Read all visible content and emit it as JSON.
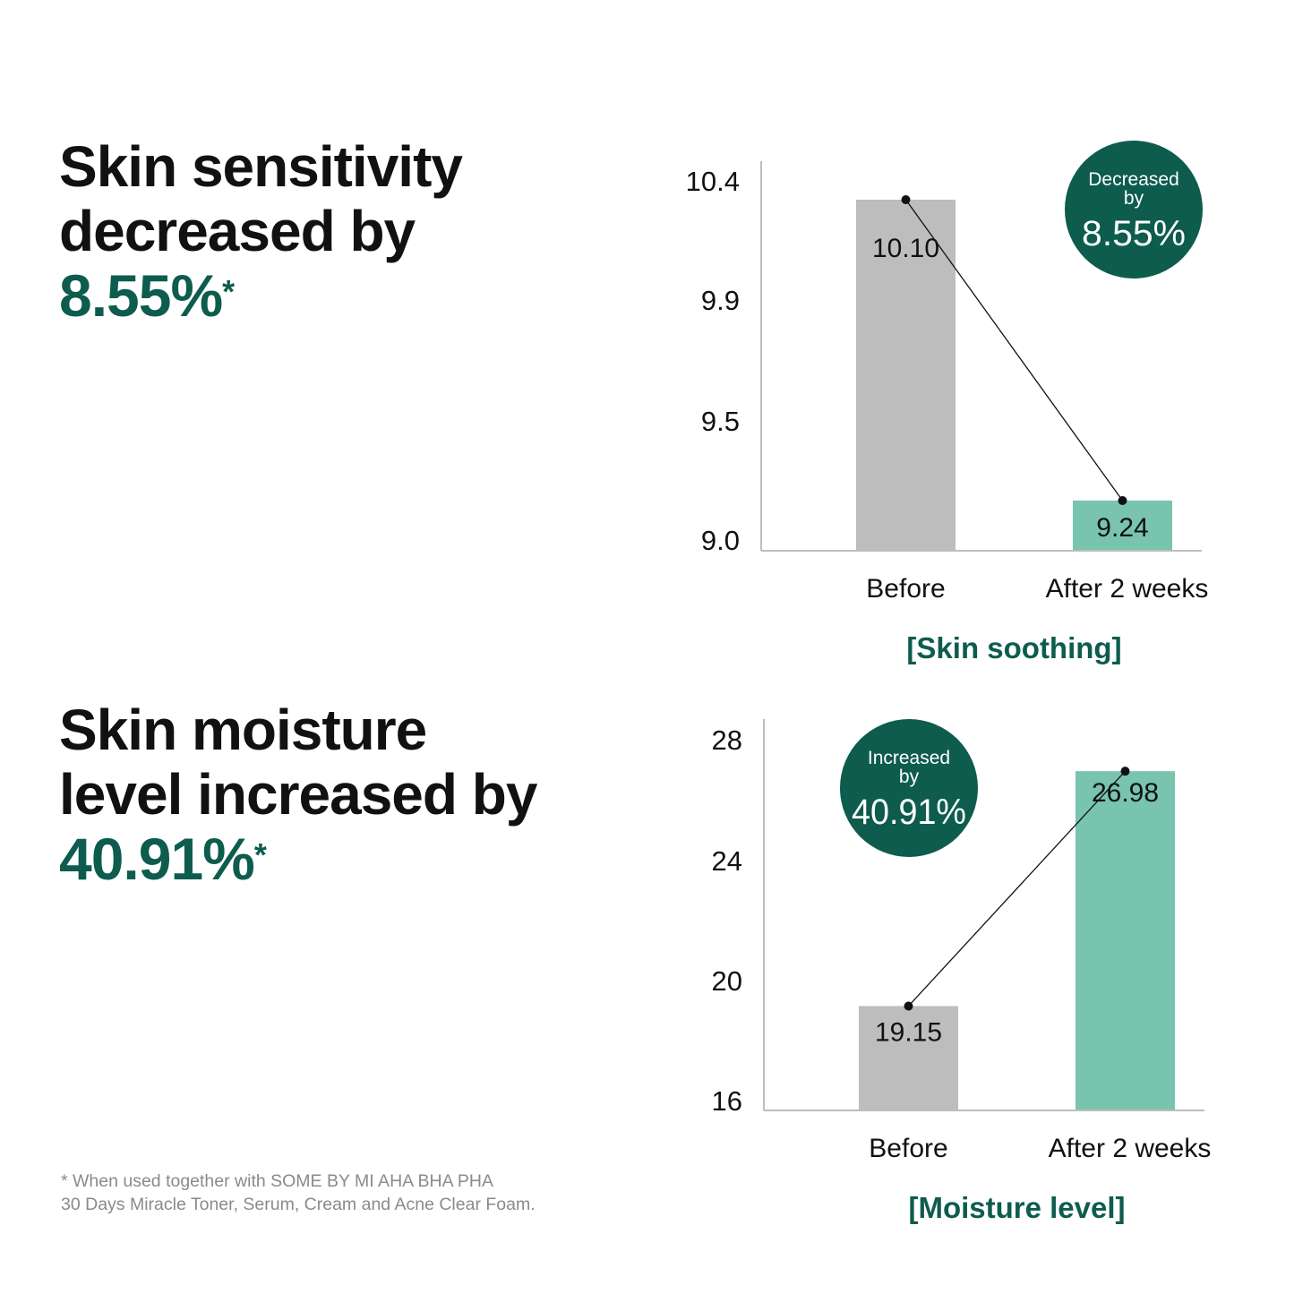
{
  "headlines": [
    {
      "line1": "Skin sensitivity",
      "line2": "decreased by",
      "pct": "8.55%",
      "mark": "*"
    },
    {
      "line1": "Skin moisture",
      "line2": "level increased by",
      "pct": "40.91%",
      "mark": "*"
    }
  ],
  "footnote": {
    "line1": "* When used together with SOME BY MI AHA BHA PHA",
    "line2": "30 Days Miracle Toner, Serum, Cream and Acne Clear Foam."
  },
  "colors": {
    "before": "#bdbdbd",
    "after": "#78c4af",
    "accent": "#0d5c4e",
    "text": "#111111"
  },
  "chart_data": [
    {
      "type": "bar",
      "title": "[Skin soothing]",
      "categories": [
        "Before",
        "After 2 weeks"
      ],
      "values": [
        10.1,
        9.24
      ],
      "value_labels": [
        "10.10",
        "9.24"
      ],
      "yticks": [
        "9.0",
        "9.5",
        "9.9",
        "10.4"
      ],
      "badge": {
        "line1": "Decreased",
        "line2": "by",
        "value": "8.55%"
      },
      "grid": false,
      "legend": "none"
    },
    {
      "type": "bar",
      "title": "[Moisture level]",
      "categories": [
        "Before",
        "After 2 weeks"
      ],
      "values": [
        19.15,
        26.98
      ],
      "value_labels": [
        "19.15",
        "26.98"
      ],
      "yticks": [
        "16",
        "20",
        "24",
        "28"
      ],
      "badge": {
        "line1": "Increased",
        "line2": "by",
        "value": "40.91%"
      },
      "grid": false,
      "legend": "none"
    }
  ]
}
